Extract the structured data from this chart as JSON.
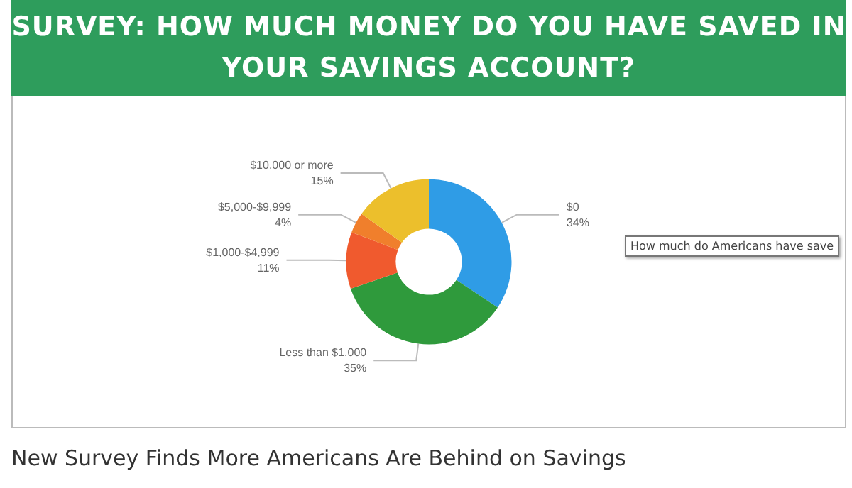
{
  "chart_data": {
    "type": "donut",
    "title": "SURVEY: HOW MUCH MONEY DO YOU HAVE SAVED IN YOUR SAVINGS ACCOUNT?",
    "categories": [
      "$0",
      "Less than $1,000",
      "$1,000-$4,999",
      "$5,000-$9,999",
      "$10,000 or more"
    ],
    "values": [
      34,
      35,
      11,
      4,
      15
    ],
    "value_labels": [
      "34%",
      "35%",
      "11%",
      "4%",
      "15%"
    ],
    "colors": [
      "#2f9ce6",
      "#2f9a3c",
      "#f05a2e",
      "#f07f2c",
      "#ecbf2c"
    ],
    "legend": false,
    "annotations": [
      "How much do Americans have save",
      "New Survey Finds More Americans Are Behind on Savings"
    ]
  }
}
